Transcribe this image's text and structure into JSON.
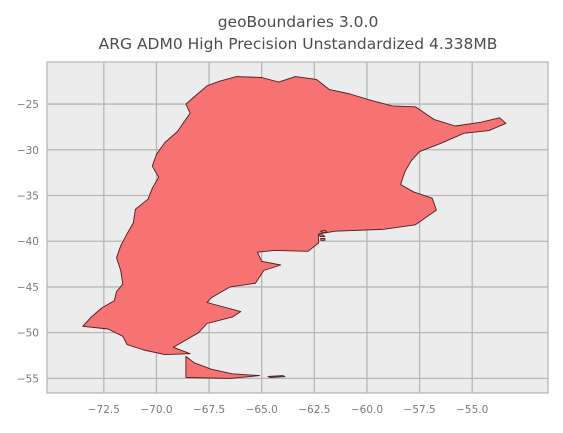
{
  "figure": {
    "title_line1": "geoBoundaries 3.0.0",
    "title_line2": "ARG ADM0 High Precision Unstandardized 4.338MB"
  },
  "axes": {
    "background": "#ececec",
    "grid_color": "#b7b7b7",
    "frame_color": "#b5b5b5",
    "grid": true,
    "xlim": [
      -75.2,
      -51.4
    ],
    "ylim": [
      -56.6,
      -20.4
    ],
    "x_ticks": [
      -72.5,
      -70.0,
      -67.5,
      -65.0,
      -62.5,
      -60.0,
      -57.5,
      -55.0
    ],
    "x_tick_labels": [
      "−72.5",
      "−70.0",
      "−67.5",
      "−65.0",
      "−62.5",
      "−60.0",
      "−57.5",
      "−55.0"
    ],
    "y_ticks": [
      -25,
      -30,
      -35,
      -40,
      -45,
      -50,
      -55
    ],
    "y_tick_labels": [
      "−25",
      "−30",
      "−35",
      "−40",
      "−45",
      "−50",
      "−55"
    ]
  },
  "map": {
    "fill_color": "#f77272",
    "edge_color": "#4a1f1f",
    "mainland": [
      [
        -71.4,
        -51.3
      ],
      [
        -71.6,
        -50.4
      ],
      [
        -72.3,
        -49.6
      ],
      [
        -73.5,
        -49.3
      ],
      [
        -73.1,
        -48.3
      ],
      [
        -72.6,
        -47.3
      ],
      [
        -72.0,
        -46.5
      ],
      [
        -71.9,
        -45.5
      ],
      [
        -71.6,
        -44.7
      ],
      [
        -71.7,
        -43.2
      ],
      [
        -71.9,
        -41.8
      ],
      [
        -71.7,
        -40.5
      ],
      [
        -71.4,
        -39.2
      ],
      [
        -71.1,
        -38.0
      ],
      [
        -71.0,
        -36.5
      ],
      [
        -70.4,
        -35.4
      ],
      [
        -70.2,
        -34.2
      ],
      [
        -69.9,
        -33.0
      ],
      [
        -70.2,
        -31.8
      ],
      [
        -70.0,
        -30.5
      ],
      [
        -69.6,
        -29.2
      ],
      [
        -69.0,
        -28.0
      ],
      [
        -68.7,
        -27.0
      ],
      [
        -68.4,
        -26.0
      ],
      [
        -68.6,
        -25.0
      ],
      [
        -68.1,
        -24.0
      ],
      [
        -67.6,
        -23.0
      ],
      [
        -67.0,
        -22.5
      ],
      [
        -66.2,
        -22.0
      ],
      [
        -65.0,
        -22.1
      ],
      [
        -64.2,
        -22.6
      ],
      [
        -63.4,
        -22.0
      ],
      [
        -62.4,
        -22.3
      ],
      [
        -61.8,
        -23.4
      ],
      [
        -60.8,
        -23.9
      ],
      [
        -59.8,
        -24.6
      ],
      [
        -58.8,
        -25.2
      ],
      [
        -57.7,
        -25.3
      ],
      [
        -56.8,
        -26.7
      ],
      [
        -55.8,
        -27.4
      ],
      [
        -54.6,
        -27.0
      ],
      [
        -53.7,
        -26.5
      ],
      [
        -53.4,
        -27.1
      ],
      [
        -54.2,
        -27.9
      ],
      [
        -55.4,
        -28.2
      ],
      [
        -56.5,
        -29.3
      ],
      [
        -57.5,
        -30.2
      ],
      [
        -57.9,
        -31.2
      ],
      [
        -58.2,
        -32.4
      ],
      [
        -58.4,
        -33.8
      ],
      [
        -57.8,
        -34.6
      ],
      [
        -56.9,
        -35.3
      ],
      [
        -56.7,
        -36.6
      ],
      [
        -57.7,
        -38.2
      ],
      [
        -59.2,
        -38.7
      ],
      [
        -61.5,
        -38.9
      ],
      [
        -62.3,
        -39.2
      ],
      [
        -62.3,
        -40.2
      ],
      [
        -62.8,
        -41.1
      ],
      [
        -64.4,
        -41.0
      ],
      [
        -65.2,
        -41.2
      ],
      [
        -65.0,
        -42.2
      ],
      [
        -64.1,
        -42.6
      ],
      [
        -64.9,
        -43.2
      ],
      [
        -65.3,
        -44.6
      ],
      [
        -66.5,
        -45.0
      ],
      [
        -67.4,
        -46.2
      ],
      [
        -67.6,
        -46.7
      ],
      [
        -66.0,
        -47.7
      ],
      [
        -66.4,
        -48.3
      ],
      [
        -67.6,
        -49.0
      ],
      [
        -68.0,
        -50.0
      ],
      [
        -68.6,
        -50.8
      ],
      [
        -69.2,
        -51.6
      ],
      [
        -68.4,
        -52.3
      ],
      [
        -69.6,
        -52.4
      ],
      [
        -70.6,
        -51.9
      ],
      [
        -71.4,
        -51.3
      ]
    ],
    "tierra_del_fuego": [
      [
        -68.6,
        -52.6
      ],
      [
        -68.2,
        -53.3
      ],
      [
        -67.4,
        -54.0
      ],
      [
        -66.4,
        -54.5
      ],
      [
        -65.1,
        -54.7
      ],
      [
        -66.5,
        -55.0
      ],
      [
        -68.6,
        -54.9
      ],
      [
        -68.6,
        -52.6
      ]
    ],
    "isla_de_los_estados": [
      [
        -64.7,
        -54.8
      ],
      [
        -64.0,
        -54.7
      ],
      [
        -63.9,
        -54.8
      ],
      [
        -64.6,
        -54.9
      ],
      [
        -64.7,
        -54.8
      ]
    ],
    "bahia_blanca_islands": [
      [
        [
          -62.2,
          -38.9
        ],
        [
          -62.0,
          -38.8
        ],
        [
          -61.9,
          -39.0
        ],
        [
          -62.1,
          -39.1
        ],
        [
          -62.2,
          -38.9
        ]
      ],
      [
        [
          -62.3,
          -39.3
        ],
        [
          -62.1,
          -39.3
        ],
        [
          -62.0,
          -39.5
        ],
        [
          -62.2,
          -39.5
        ],
        [
          -62.3,
          -39.3
        ]
      ],
      [
        [
          -62.2,
          -39.7
        ],
        [
          -62.0,
          -39.7
        ],
        [
          -62.0,
          -39.9
        ],
        [
          -62.2,
          -39.9
        ],
        [
          -62.2,
          -39.7
        ]
      ]
    ]
  }
}
